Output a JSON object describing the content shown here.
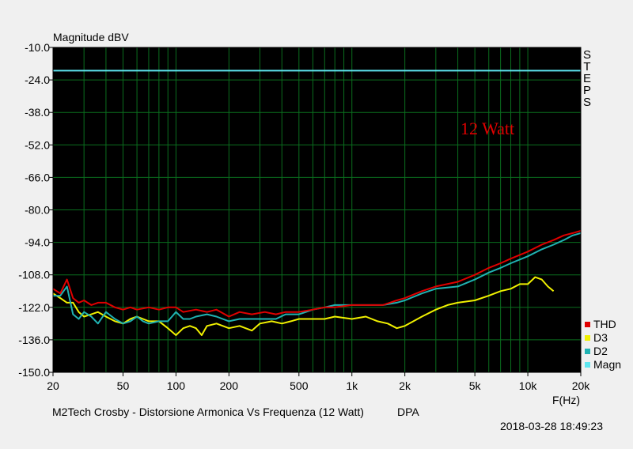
{
  "chart_data": {
    "type": "line",
    "ylabel": "Magnitude dBV",
    "xlabel": "F(Hz)",
    "title": "M2Tech Crosby - Distorsione Armonica Vs Frequenza (12 Watt)",
    "subtitle": "DPA",
    "timestamp": "2018-03-28 18:49:23",
    "side_label": "STEPS",
    "annotation": "12 Watt",
    "x_scale": "log",
    "xlim": [
      20,
      20000
    ],
    "ylim": [
      -150,
      -10
    ],
    "yticks": [
      "-10.0",
      "-24.0",
      "-38.0",
      "-52.0",
      "-66.0",
      "-80.0",
      "-94.0",
      "-108.0",
      "-122.0",
      "-136.0",
      "-150.0"
    ],
    "xticks": [
      {
        "v": 20,
        "label": "20"
      },
      {
        "v": 50,
        "label": "50"
      },
      {
        "v": 100,
        "label": "100"
      },
      {
        "v": 200,
        "label": "200"
      },
      {
        "v": 500,
        "label": "500"
      },
      {
        "v": 1000,
        "label": "1k"
      },
      {
        "v": 2000,
        "label": "2k"
      },
      {
        "v": 5000,
        "label": "5k"
      },
      {
        "v": 10000,
        "label": "10k"
      },
      {
        "v": 20000,
        "label": "20k"
      }
    ],
    "grid": true,
    "legend_position": "bottom-right",
    "background": "#000000",
    "grid_color": "#0a6e1e",
    "series": [
      {
        "name": "THD",
        "color": "#e00000",
        "points": [
          [
            20,
            -114
          ],
          [
            22,
            -116
          ],
          [
            24,
            -110
          ],
          [
            26,
            -118
          ],
          [
            28,
            -120
          ],
          [
            30,
            -119
          ],
          [
            33,
            -121
          ],
          [
            36,
            -120
          ],
          [
            40,
            -120
          ],
          [
            45,
            -122
          ],
          [
            50,
            -123
          ],
          [
            55,
            -122
          ],
          [
            60,
            -123
          ],
          [
            70,
            -122
          ],
          [
            80,
            -123
          ],
          [
            90,
            -122
          ],
          [
            100,
            -122
          ],
          [
            110,
            -124
          ],
          [
            130,
            -123
          ],
          [
            150,
            -124
          ],
          [
            170,
            -123
          ],
          [
            200,
            -126
          ],
          [
            230,
            -124
          ],
          [
            270,
            -125
          ],
          [
            320,
            -124
          ],
          [
            370,
            -125
          ],
          [
            420,
            -124
          ],
          [
            500,
            -124
          ],
          [
            600,
            -123
          ],
          [
            700,
            -122
          ],
          [
            800,
            -122
          ],
          [
            1000,
            -121
          ],
          [
            1200,
            -121
          ],
          [
            1500,
            -121
          ],
          [
            1800,
            -119
          ],
          [
            2000,
            -118
          ],
          [
            2500,
            -115
          ],
          [
            3000,
            -113
          ],
          [
            4000,
            -111
          ],
          [
            5000,
            -108
          ],
          [
            6000,
            -105
          ],
          [
            7000,
            -103
          ],
          [
            8000,
            -101
          ],
          [
            10000,
            -98
          ],
          [
            12000,
            -95
          ],
          [
            14000,
            -93
          ],
          [
            16000,
            -91
          ],
          [
            18000,
            -90
          ],
          [
            20000,
            -89
          ]
        ]
      },
      {
        "name": "D3",
        "color": "#f0f000",
        "points": [
          [
            20,
            -116
          ],
          [
            22,
            -118
          ],
          [
            24,
            -120
          ],
          [
            26,
            -120
          ],
          [
            28,
            -124
          ],
          [
            30,
            -126
          ],
          [
            33,
            -125
          ],
          [
            36,
            -124
          ],
          [
            40,
            -126
          ],
          [
            45,
            -128
          ],
          [
            50,
            -129
          ],
          [
            55,
            -127
          ],
          [
            60,
            -126
          ],
          [
            65,
            -127
          ],
          [
            70,
            -128
          ],
          [
            80,
            -128
          ],
          [
            90,
            -131
          ],
          [
            100,
            -134
          ],
          [
            110,
            -131
          ],
          [
            120,
            -130
          ],
          [
            130,
            -131
          ],
          [
            140,
            -134
          ],
          [
            150,
            -130
          ],
          [
            170,
            -129
          ],
          [
            200,
            -131
          ],
          [
            230,
            -130
          ],
          [
            270,
            -132
          ],
          [
            300,
            -129
          ],
          [
            350,
            -128
          ],
          [
            400,
            -129
          ],
          [
            450,
            -128
          ],
          [
            500,
            -127
          ],
          [
            600,
            -127
          ],
          [
            700,
            -127
          ],
          [
            800,
            -126
          ],
          [
            1000,
            -127
          ],
          [
            1200,
            -126
          ],
          [
            1400,
            -128
          ],
          [
            1600,
            -129
          ],
          [
            1800,
            -131
          ],
          [
            2000,
            -130
          ],
          [
            2500,
            -126
          ],
          [
            3000,
            -123
          ],
          [
            3500,
            -121
          ],
          [
            4000,
            -120
          ],
          [
            5000,
            -119
          ],
          [
            6000,
            -117
          ],
          [
            7000,
            -115
          ],
          [
            8000,
            -114
          ],
          [
            9000,
            -112
          ],
          [
            10000,
            -112
          ],
          [
            11000,
            -109
          ],
          [
            12000,
            -110
          ],
          [
            13000,
            -113
          ],
          [
            14000,
            -115
          ]
        ]
      },
      {
        "name": "D2",
        "color": "#20b2b2",
        "points": [
          [
            20,
            -117
          ],
          [
            22,
            -117
          ],
          [
            24,
            -113
          ],
          [
            26,
            -125
          ],
          [
            28,
            -127
          ],
          [
            30,
            -124
          ],
          [
            33,
            -126
          ],
          [
            36,
            -129
          ],
          [
            40,
            -124
          ],
          [
            45,
            -127
          ],
          [
            50,
            -129
          ],
          [
            55,
            -128
          ],
          [
            60,
            -126
          ],
          [
            65,
            -128
          ],
          [
            70,
            -129
          ],
          [
            80,
            -128
          ],
          [
            90,
            -128
          ],
          [
            100,
            -124
          ],
          [
            110,
            -127
          ],
          [
            120,
            -127
          ],
          [
            130,
            -126
          ],
          [
            150,
            -125
          ],
          [
            170,
            -126
          ],
          [
            200,
            -128
          ],
          [
            230,
            -127
          ],
          [
            270,
            -127
          ],
          [
            320,
            -127
          ],
          [
            370,
            -127
          ],
          [
            420,
            -125
          ],
          [
            500,
            -125
          ],
          [
            600,
            -123
          ],
          [
            700,
            -122
          ],
          [
            800,
            -121
          ],
          [
            1000,
            -121
          ],
          [
            1200,
            -121
          ],
          [
            1500,
            -121
          ],
          [
            1800,
            -120
          ],
          [
            2000,
            -119
          ],
          [
            2500,
            -116
          ],
          [
            3000,
            -114
          ],
          [
            4000,
            -113
          ],
          [
            5000,
            -110
          ],
          [
            6000,
            -107
          ],
          [
            7000,
            -105
          ],
          [
            8000,
            -103
          ],
          [
            10000,
            -100
          ],
          [
            12000,
            -97
          ],
          [
            14000,
            -95
          ],
          [
            16000,
            -93
          ],
          [
            18000,
            -91
          ],
          [
            20000,
            -90
          ]
        ]
      },
      {
        "name": "Magn",
        "color": "#5ee6f0",
        "points": [
          [
            20,
            -20
          ],
          [
            20000,
            -20
          ]
        ]
      }
    ]
  }
}
